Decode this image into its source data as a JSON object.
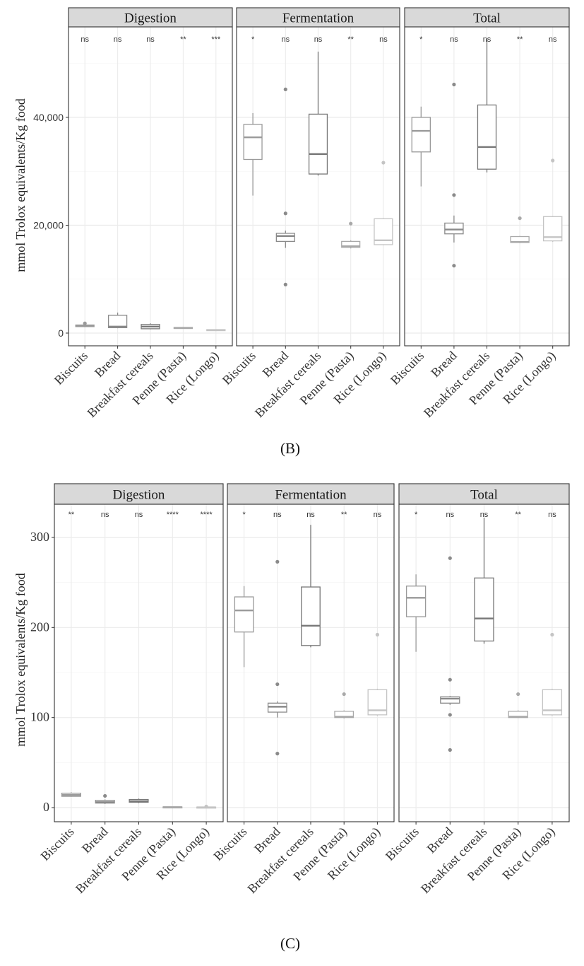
{
  "chart_data": [
    {
      "type": "box",
      "id": "B",
      "caption": "(B)",
      "ylabel": "mmol Trolox equivalents/Kg food",
      "ylim": [
        -2000,
        58000
      ],
      "yticks": [
        0,
        20000,
        40000
      ],
      "ytick_labels": [
        "0",
        "20,000",
        "40,000"
      ],
      "categories": [
        "Biscuits",
        "Bread",
        "Breakfast cereals",
        "Penne (Pasta)",
        "Rice (Longo)"
      ],
      "panels": [
        {
          "name": "Digestion",
          "significance": [
            "ns",
            "ns",
            "ns",
            "**",
            "***"
          ],
          "boxes": [
            {
              "whislo": 1100,
              "q1": 1200,
              "med": 1300,
              "q3": 1500,
              "whishi": 1600,
              "outliers": [
                1800
              ]
            },
            {
              "whislo": 900,
              "q1": 1000,
              "med": 1200,
              "q3": 3300,
              "whishi": 3800,
              "outliers": []
            },
            {
              "whislo": 700,
              "q1": 800,
              "med": 1200,
              "q3": 1600,
              "whishi": 1800,
              "outliers": []
            },
            {
              "whislo": 800,
              "q1": 850,
              "med": 950,
              "q3": 1050,
              "whishi": 1100,
              "outliers": []
            },
            {
              "whislo": 400,
              "q1": 450,
              "med": 550,
              "q3": 650,
              "whishi": 700,
              "outliers": []
            }
          ]
        },
        {
          "name": "Fermentation",
          "significance": [
            "*",
            "ns",
            "ns",
            "**",
            "ns"
          ],
          "boxes": [
            {
              "whislo": 25500,
              "q1": 32200,
              "med": 36300,
              "q3": 38700,
              "whishi": 40800,
              "outliers": []
            },
            {
              "whislo": 15800,
              "q1": 17000,
              "med": 18000,
              "q3": 18500,
              "whishi": 19000,
              "outliers": [
                22200,
                45200,
                9000
              ]
            },
            {
              "whislo": 29200,
              "q1": 29500,
              "med": 33200,
              "q3": 40600,
              "whishi": 52200,
              "outliers": []
            },
            {
              "whislo": 15700,
              "q1": 15900,
              "med": 16100,
              "q3": 17000,
              "whishi": 17200,
              "outliers": [
                20300
              ]
            },
            {
              "whislo": 16300,
              "q1": 16400,
              "med": 17200,
              "q3": 21200,
              "whishi": 21300,
              "outliers": [
                31600
              ]
            }
          ]
        },
        {
          "name": "Total",
          "significance": [
            "*",
            "ns",
            "ns",
            "**",
            "ns"
          ],
          "boxes": [
            {
              "whislo": 27200,
              "q1": 33600,
              "med": 37500,
              "q3": 40000,
              "whishi": 42000,
              "outliers": []
            },
            {
              "whislo": 16800,
              "q1": 18400,
              "med": 19200,
              "q3": 20400,
              "whishi": 21800,
              "outliers": [
                25600,
                46100,
                12500
              ]
            },
            {
              "whislo": 29800,
              "q1": 30400,
              "med": 34500,
              "q3": 42300,
              "whishi": 54500,
              "outliers": []
            },
            {
              "whislo": 16700,
              "q1": 16800,
              "med": 16900,
              "q3": 17900,
              "whishi": 18000,
              "outliers": [
                21300
              ]
            },
            {
              "whislo": 16900,
              "q1": 17100,
              "med": 17800,
              "q3": 21600,
              "whishi": 21700,
              "outliers": [
                32000
              ]
            }
          ]
        }
      ]
    },
    {
      "type": "box",
      "id": "C",
      "caption": "(C)",
      "ylabel": "mmol Trolox equivalents/Kg food",
      "ylim": [
        -15,
        345
      ],
      "yticks": [
        0,
        100,
        200,
        300
      ],
      "ytick_labels": [
        "0",
        "100",
        "200",
        "300"
      ],
      "categories": [
        "Biscuits",
        "Bread",
        "Breakfast cereals",
        "Penne (Pasta)",
        "Rice (Longo)"
      ],
      "panels": [
        {
          "name": "Digestion",
          "significance": [
            "**",
            "ns",
            "ns",
            "****",
            "****"
          ],
          "boxes": [
            {
              "whislo": 12,
              "q1": 12.5,
              "med": 14,
              "q3": 16,
              "whishi": 17,
              "outliers": []
            },
            {
              "whislo": 4,
              "q1": 5,
              "med": 6,
              "q3": 8,
              "whishi": 9,
              "outliers": [
                13
              ]
            },
            {
              "whislo": 5,
              "q1": 6,
              "med": 7,
              "q3": 9,
              "whishi": 10,
              "outliers": []
            },
            {
              "whislo": 0,
              "q1": 0.3,
              "med": 0.5,
              "q3": 0.8,
              "whishi": 1,
              "outliers": []
            },
            {
              "whislo": 0,
              "q1": 0.1,
              "med": 0.3,
              "q3": 0.6,
              "whishi": 0.8,
              "outliers": [
                1.2
              ]
            }
          ]
        },
        {
          "name": "Fermentation",
          "significance": [
            "*",
            "ns",
            "ns",
            "**",
            "ns"
          ],
          "boxes": [
            {
              "whislo": 156,
              "q1": 195,
              "med": 219,
              "q3": 234,
              "whishi": 246,
              "outliers": []
            },
            {
              "whislo": 100,
              "q1": 106,
              "med": 112,
              "q3": 116,
              "whishi": 118,
              "outliers": [
                137,
                273,
                60
              ]
            },
            {
              "whislo": 178,
              "q1": 180,
              "med": 202,
              "q3": 245,
              "whishi": 314,
              "outliers": []
            },
            {
              "whislo": 99,
              "q1": 100,
              "med": 101,
              "q3": 107,
              "whishi": 108,
              "outliers": [
                126
              ]
            },
            {
              "whislo": 102,
              "q1": 103,
              "med": 108,
              "q3": 131,
              "whishi": 132,
              "outliers": [
                192
              ]
            }
          ]
        },
        {
          "name": "Total",
          "significance": [
            "*",
            "ns",
            "ns",
            "**",
            "ns"
          ],
          "boxes": [
            {
              "whislo": 173,
              "q1": 212,
              "med": 233,
              "q3": 246,
              "whishi": 259,
              "outliers": []
            },
            {
              "whislo": 114,
              "q1": 116,
              "med": 121,
              "q3": 123,
              "whishi": 124,
              "outliers": [
                142,
                277,
                64,
                103
              ]
            },
            {
              "whislo": 182,
              "q1": 185,
              "med": 210,
              "q3": 255,
              "whishi": 322,
              "outliers": []
            },
            {
              "whislo": 100,
              "q1": 100,
              "med": 101,
              "q3": 107,
              "whishi": 108,
              "outliers": [
                126
              ]
            },
            {
              "whislo": 102,
              "q1": 103,
              "med": 108,
              "q3": 131,
              "whishi": 132,
              "outliers": [
                192
              ]
            }
          ]
        }
      ]
    }
  ],
  "colors": {
    "strip_fill": "#d9d9d9",
    "panel_border": "#333333",
    "grid_major": "#ebebeb",
    "grid_minor": "#f5f5f5",
    "box_series": [
      "#9a9a9a",
      "#8a8a8a",
      "#777777",
      "#a9a9a9",
      "#c4c4c4"
    ]
  }
}
